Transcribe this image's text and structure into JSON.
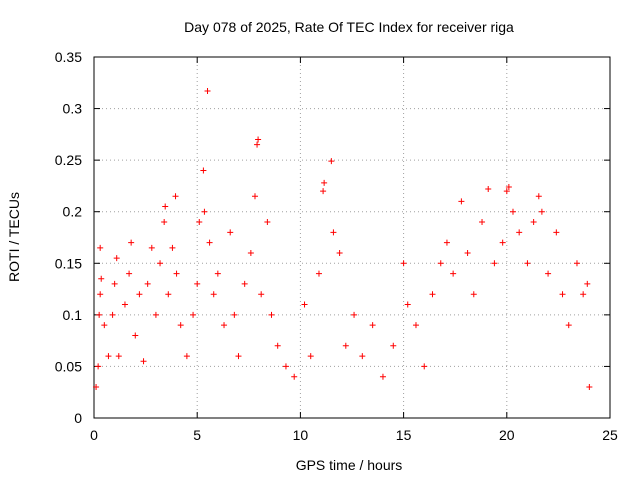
{
  "chart_data": {
    "type": "scatter",
    "title": "Day 078 of 2025, Rate Of TEC Index for receiver riga",
    "xlabel": "GPS time / hours",
    "ylabel": "ROTI / TECUs",
    "xlim": [
      0,
      25
    ],
    "ylim": [
      0,
      0.35
    ],
    "xticks": [
      0,
      5,
      10,
      15,
      20,
      25
    ],
    "yticks": [
      0,
      0.05,
      0.1,
      0.15,
      0.2,
      0.25,
      0.3,
      0.35
    ],
    "xtick_labels": [
      "0",
      "5",
      "10",
      "15",
      "20",
      "25"
    ],
    "ytick_labels": [
      "0",
      "0.05",
      "0.1",
      "0.15",
      "0.2",
      "0.25",
      "0.3",
      "0.35"
    ],
    "grid": true,
    "marker": "+",
    "color": "#ff0000",
    "series": [
      {
        "points": [
          [
            0.1,
            0.03
          ],
          [
            0.2,
            0.05
          ],
          [
            0.25,
            0.1
          ],
          [
            0.3,
            0.12
          ],
          [
            0.35,
            0.135
          ],
          [
            0.3,
            0.165
          ],
          [
            0.5,
            0.09
          ],
          [
            0.7,
            0.06
          ],
          [
            0.9,
            0.1
          ],
          [
            1.0,
            0.13
          ],
          [
            1.1,
            0.155
          ],
          [
            1.2,
            0.06
          ],
          [
            1.5,
            0.11
          ],
          [
            1.7,
            0.14
          ],
          [
            1.8,
            0.17
          ],
          [
            2.0,
            0.08
          ],
          [
            2.2,
            0.12
          ],
          [
            2.4,
            0.055
          ],
          [
            2.6,
            0.13
          ],
          [
            2.8,
            0.165
          ],
          [
            3.0,
            0.1
          ],
          [
            3.2,
            0.15
          ],
          [
            3.4,
            0.19
          ],
          [
            3.45,
            0.205
          ],
          [
            3.6,
            0.12
          ],
          [
            3.8,
            0.165
          ],
          [
            3.95,
            0.215
          ],
          [
            4.0,
            0.14
          ],
          [
            4.2,
            0.09
          ],
          [
            4.5,
            0.06
          ],
          [
            4.8,
            0.1
          ],
          [
            5.0,
            0.13
          ],
          [
            5.1,
            0.19
          ],
          [
            5.3,
            0.24
          ],
          [
            5.35,
            0.2
          ],
          [
            5.5,
            0.317
          ],
          [
            5.6,
            0.17
          ],
          [
            5.8,
            0.12
          ],
          [
            6.0,
            0.14
          ],
          [
            6.3,
            0.09
          ],
          [
            6.6,
            0.18
          ],
          [
            6.8,
            0.1
          ],
          [
            7.0,
            0.06
          ],
          [
            7.3,
            0.13
          ],
          [
            7.6,
            0.16
          ],
          [
            7.8,
            0.215
          ],
          [
            7.95,
            0.27
          ],
          [
            7.9,
            0.265
          ],
          [
            8.1,
            0.12
          ],
          [
            8.4,
            0.19
          ],
          [
            8.6,
            0.1
          ],
          [
            8.9,
            0.07
          ],
          [
            9.3,
            0.05
          ],
          [
            9.7,
            0.04
          ],
          [
            10.2,
            0.11
          ],
          [
            10.5,
            0.06
          ],
          [
            10.9,
            0.14
          ],
          [
            11.1,
            0.22
          ],
          [
            11.15,
            0.228
          ],
          [
            11.5,
            0.249
          ],
          [
            11.6,
            0.18
          ],
          [
            11.9,
            0.16
          ],
          [
            12.2,
            0.07
          ],
          [
            12.6,
            0.1
          ],
          [
            13.0,
            0.06
          ],
          [
            13.5,
            0.09
          ],
          [
            14.0,
            0.04
          ],
          [
            14.5,
            0.07
          ],
          [
            15.0,
            0.15
          ],
          [
            15.2,
            0.11
          ],
          [
            15.6,
            0.09
          ],
          [
            16.0,
            0.05
          ],
          [
            16.4,
            0.12
          ],
          [
            16.8,
            0.15
          ],
          [
            17.1,
            0.17
          ],
          [
            17.4,
            0.14
          ],
          [
            17.8,
            0.21
          ],
          [
            18.1,
            0.16
          ],
          [
            18.4,
            0.12
          ],
          [
            18.8,
            0.19
          ],
          [
            19.1,
            0.222
          ],
          [
            19.4,
            0.15
          ],
          [
            19.8,
            0.17
          ],
          [
            20.0,
            0.22
          ],
          [
            20.1,
            0.224
          ],
          [
            20.3,
            0.2
          ],
          [
            20.6,
            0.18
          ],
          [
            21.0,
            0.15
          ],
          [
            21.3,
            0.19
          ],
          [
            21.55,
            0.215
          ],
          [
            21.7,
            0.2
          ],
          [
            22.0,
            0.14
          ],
          [
            22.4,
            0.18
          ],
          [
            22.7,
            0.12
          ],
          [
            23.0,
            0.09
          ],
          [
            23.4,
            0.15
          ],
          [
            23.7,
            0.12
          ],
          [
            23.9,
            0.13
          ],
          [
            24.0,
            0.03
          ]
        ]
      }
    ]
  }
}
